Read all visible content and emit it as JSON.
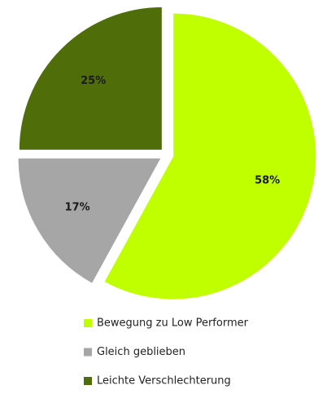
{
  "chart_data": {
    "type": "pie",
    "categories": [
      "Bewegung zu Low Performer",
      "Gleich geblieben",
      "Leichte Verschlechterung"
    ],
    "values": [
      58,
      17,
      25
    ],
    "value_labels": [
      "58%",
      "17%",
      "25%"
    ],
    "colors": [
      "#bfff00",
      "#a6a6a6",
      "#4f6e0a"
    ]
  }
}
